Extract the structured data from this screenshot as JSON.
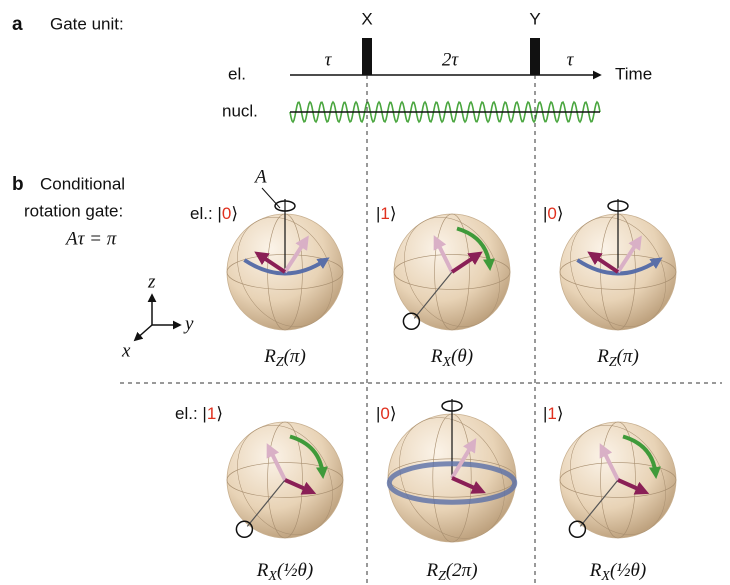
{
  "panel_a": {
    "letter": "a",
    "title": "Gate unit:",
    "pulses": [
      "X",
      "Y"
    ],
    "rows": [
      "el.",
      "nucl."
    ],
    "intervals": [
      "τ",
      "2τ",
      "τ"
    ],
    "axis_label": "Time"
  },
  "panel_b": {
    "letter": "b",
    "title_lines": [
      "Conditional",
      "rotation gate:"
    ],
    "condition": "Aτ = π",
    "field_label": "A",
    "axes": [
      "z",
      "y",
      "x"
    ],
    "el_prefix": "el.:",
    "ket_open": "|",
    "ket_close": "⟩",
    "cells": [
      {
        "state": "0",
        "op": "R",
        "sub": "Z",
        "arg": "(π)"
      },
      {
        "state": "1",
        "op": "R",
        "sub": "X",
        "arg": "(θ)"
      },
      {
        "state": "0",
        "op": "R",
        "sub": "Z",
        "arg": "(π)"
      },
      {
        "state": "1",
        "op": "R",
        "sub": "X",
        "arg": "(½θ)"
      },
      {
        "state": "0",
        "op": "R",
        "sub": "Z",
        "arg": "(2π)"
      },
      {
        "state": "1",
        "op": "R",
        "sub": "X",
        "arg": "(½θ)"
      }
    ]
  }
}
